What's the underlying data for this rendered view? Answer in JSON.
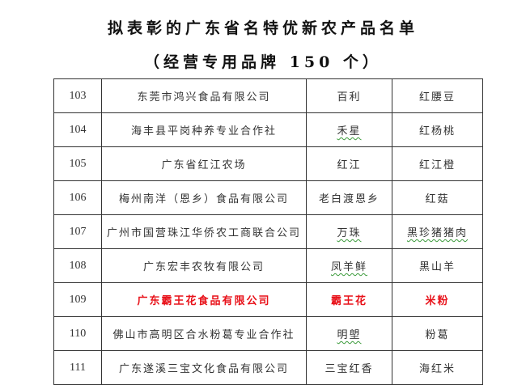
{
  "title": "拟表彰的广东省名特优新农产品名单",
  "subtitle": "（经营专用品牌 150 个）",
  "highlight_color": "#e8121a",
  "rows": [
    {
      "no": "103",
      "company": "东莞市鸿兴食品有限公司",
      "brand": "百利",
      "product": "红腰豆"
    },
    {
      "no": "104",
      "company": "海丰县平岗种养专业合作社",
      "brand": "禾星",
      "product": "红杨桃"
    },
    {
      "no": "105",
      "company": "广东省红江农场",
      "brand": "红江",
      "product": "红江橙"
    },
    {
      "no": "106",
      "company": "梅州南洋（恩乡）食品有限公司",
      "brand": "老白渡恩乡",
      "product": "红菇"
    },
    {
      "no": "107",
      "company": "广州市国营珠江华侨农工商联合公司",
      "brand": "万珠",
      "product": "黑珍猪猪肉"
    },
    {
      "no": "108",
      "company": "广东宏丰农牧有限公司",
      "brand": "凤羊鲜",
      "product": "黑山羊"
    },
    {
      "no": "109",
      "company": "广东霸王花食品有限公司",
      "brand": "霸王花",
      "product": "米粉"
    },
    {
      "no": "110",
      "company": "佛山市高明区合水粉葛专业合作社",
      "brand": "明塱",
      "product": "粉葛"
    },
    {
      "no": "111",
      "company": "广东遂溪三宝文化食品有限公司",
      "brand": "三宝红香",
      "product": "海红米"
    }
  ]
}
